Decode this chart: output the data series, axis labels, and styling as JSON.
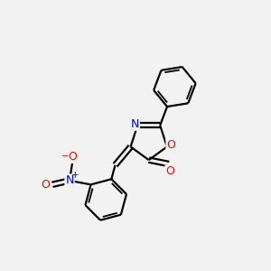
{
  "background_color": "#f2f2f2",
  "bond_color": "#000000",
  "atom_colors": {
    "O": "#ff0000",
    "N": "#0000ff",
    "C": "#000000"
  },
  "figsize": [
    3.0,
    3.0
  ],
  "dpi": 100
}
